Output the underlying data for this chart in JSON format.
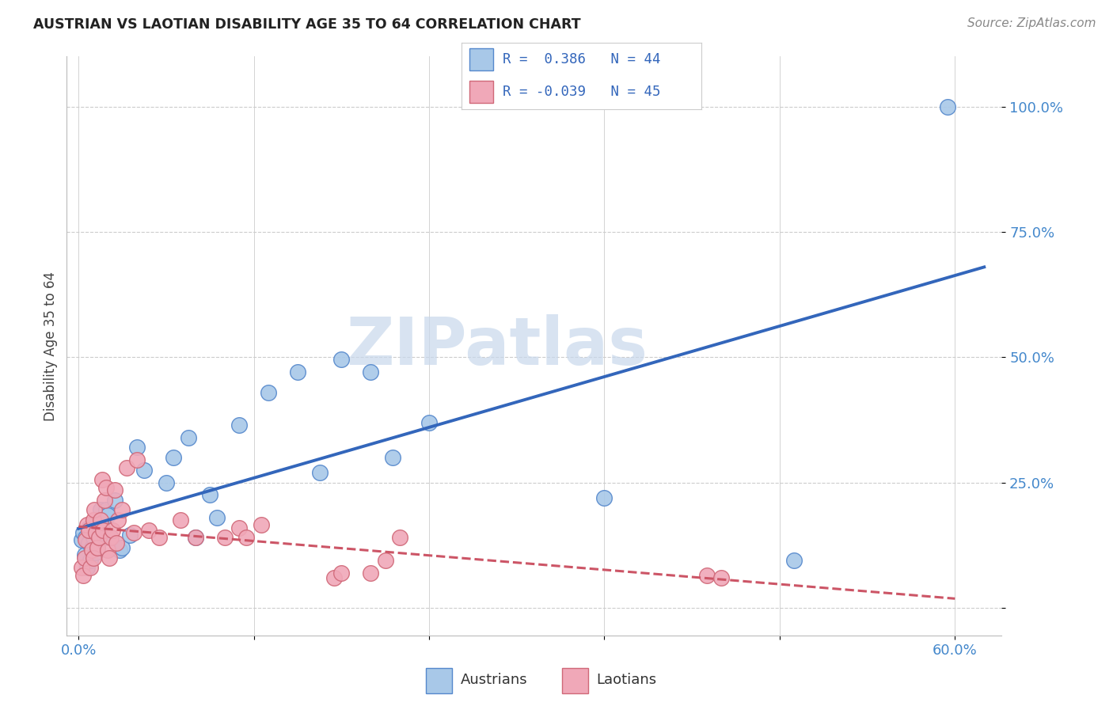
{
  "title": "AUSTRIAN VS LAOTIAN DISABILITY AGE 35 TO 64 CORRELATION CHART",
  "source": "Source: ZipAtlas.com",
  "ylabel": "Disability Age 35 to 64",
  "xlim_display": [
    0.0,
    0.6
  ],
  "ytick_labels": [
    "",
    "25.0%",
    "50.0%",
    "75.0%",
    "100.0%"
  ],
  "ytick_positions": [
    0.0,
    0.25,
    0.5,
    0.75,
    1.0
  ],
  "legend_R_blue": "R =  0.386",
  "legend_N_blue": "N = 44",
  "legend_R_pink": "R = -0.039",
  "legend_N_pink": "N = 45",
  "blue_scatter_color": "#A8C8E8",
  "blue_edge_color": "#5588CC",
  "pink_scatter_color": "#F0A8B8",
  "pink_edge_color": "#D06878",
  "blue_line_color": "#3366BB",
  "pink_line_color": "#CC5566",
  "watermark_color": "#C8D8EC",
  "austrians_x": [
    0.002,
    0.003,
    0.004,
    0.005,
    0.006,
    0.007,
    0.007,
    0.008,
    0.009,
    0.01,
    0.011,
    0.012,
    0.013,
    0.014,
    0.015,
    0.016,
    0.017,
    0.018,
    0.019,
    0.02,
    0.022,
    0.025,
    0.028,
    0.03,
    0.035,
    0.04,
    0.045,
    0.06,
    0.065,
    0.075,
    0.08,
    0.09,
    0.095,
    0.11,
    0.13,
    0.15,
    0.165,
    0.18,
    0.2,
    0.215,
    0.24,
    0.36,
    0.49,
    0.595
  ],
  "austrians_y": [
    0.135,
    0.15,
    0.105,
    0.14,
    0.08,
    0.13,
    0.16,
    0.095,
    0.12,
    0.14,
    0.16,
    0.11,
    0.12,
    0.17,
    0.195,
    0.175,
    0.15,
    0.14,
    0.195,
    0.185,
    0.14,
    0.215,
    0.115,
    0.12,
    0.145,
    0.32,
    0.275,
    0.25,
    0.3,
    0.34,
    0.14,
    0.225,
    0.18,
    0.365,
    0.43,
    0.47,
    0.27,
    0.495,
    0.47,
    0.3,
    0.37,
    0.22,
    0.095,
    1.0
  ],
  "laotians_x": [
    0.002,
    0.003,
    0.004,
    0.005,
    0.006,
    0.007,
    0.008,
    0.009,
    0.01,
    0.01,
    0.011,
    0.012,
    0.013,
    0.014,
    0.015,
    0.016,
    0.017,
    0.018,
    0.019,
    0.02,
    0.021,
    0.022,
    0.023,
    0.025,
    0.026,
    0.027,
    0.03,
    0.033,
    0.038,
    0.04,
    0.048,
    0.055,
    0.07,
    0.08,
    0.1,
    0.11,
    0.115,
    0.125,
    0.175,
    0.18,
    0.2,
    0.21,
    0.22,
    0.43,
    0.44
  ],
  "laotians_y": [
    0.08,
    0.065,
    0.1,
    0.135,
    0.165,
    0.155,
    0.08,
    0.115,
    0.1,
    0.175,
    0.195,
    0.15,
    0.12,
    0.14,
    0.175,
    0.255,
    0.155,
    0.215,
    0.24,
    0.115,
    0.1,
    0.14,
    0.155,
    0.235,
    0.13,
    0.175,
    0.195,
    0.28,
    0.15,
    0.295,
    0.155,
    0.14,
    0.175,
    0.14,
    0.14,
    0.16,
    0.14,
    0.165,
    0.06,
    0.07,
    0.07,
    0.095,
    0.14,
    0.065,
    0.06
  ]
}
